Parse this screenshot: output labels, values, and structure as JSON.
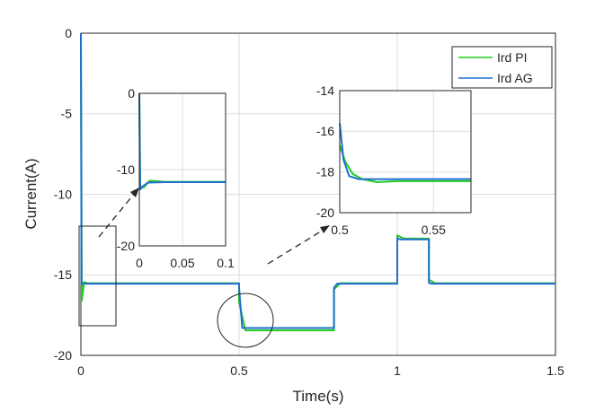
{
  "chart_data": {
    "type": "line",
    "xlabel": "Time(s)",
    "ylabel": "Current(A)",
    "xlim": [
      0,
      1.5
    ],
    "ylim": [
      -20,
      0
    ],
    "xticks": [
      0,
      0.5,
      1,
      1.5
    ],
    "xtick_labels": [
      "0",
      "0.5",
      "1",
      "1.5"
    ],
    "yticks": [
      0,
      -5,
      -10,
      -15,
      -20
    ],
    "ytick_labels": [
      "0",
      "-5",
      "-10",
      "-15",
      "-20"
    ],
    "grid": true,
    "legend_position": "top-right",
    "series": [
      {
        "name": "Ird PI",
        "color": "#22cc22",
        "points": [
          [
            0,
            0
          ],
          [
            0.003,
            -16.6
          ],
          [
            0.01,
            -15.45
          ],
          [
            0.02,
            -15.52
          ],
          [
            0.5,
            -15.52
          ],
          [
            0.5,
            -16.7
          ],
          [
            0.52,
            -18.45
          ],
          [
            0.8,
            -18.45
          ],
          [
            0.8,
            -15.9
          ],
          [
            0.82,
            -15.52
          ],
          [
            1.0,
            -15.52
          ],
          [
            1.0,
            -12.55
          ],
          [
            1.02,
            -12.75
          ],
          [
            1.1,
            -12.75
          ],
          [
            1.1,
            -15.3
          ],
          [
            1.12,
            -15.52
          ],
          [
            1.5,
            -15.52
          ]
        ]
      },
      {
        "name": "Ird AG",
        "color": "#1f6fd0",
        "points": [
          [
            0,
            0
          ],
          [
            0.002,
            -15.55
          ],
          [
            0.5,
            -15.55
          ],
          [
            0.5,
            -15.8
          ],
          [
            0.51,
            -18.3
          ],
          [
            0.8,
            -18.3
          ],
          [
            0.8,
            -15.8
          ],
          [
            0.81,
            -15.55
          ],
          [
            1.0,
            -15.55
          ],
          [
            1.0,
            -12.75
          ],
          [
            1.01,
            -12.8
          ],
          [
            1.1,
            -12.8
          ],
          [
            1.1,
            -15.5
          ],
          [
            1.11,
            -15.55
          ],
          [
            1.5,
            -15.55
          ]
        ]
      }
    ],
    "insets": [
      {
        "xlim": [
          0,
          0.1
        ],
        "ylim": [
          -20,
          0
        ],
        "xticks": [
          0,
          0.05,
          0.1
        ],
        "xtick_labels": [
          "0",
          "0.05",
          "0.1"
        ],
        "yticks": [
          0,
          -10,
          -20
        ],
        "ytick_labels": [
          "0",
          "-10",
          "-20"
        ],
        "series": [
          {
            "name": "Ird PI",
            "points": [
              [
                0,
                0
              ],
              [
                0.001,
                -12.2
              ],
              [
                0.005,
                -12.35
              ],
              [
                0.012,
                -11.45
              ],
              [
                0.03,
                -11.6
              ],
              [
                0.1,
                -11.6
              ]
            ]
          },
          {
            "name": "Ird AG",
            "points": [
              [
                0,
                0
              ],
              [
                0.001,
                -12.6
              ],
              [
                0.004,
                -12.2
              ],
              [
                0.01,
                -11.7
              ],
              [
                0.03,
                -11.65
              ],
              [
                0.1,
                -11.65
              ]
            ]
          }
        ]
      },
      {
        "xlim": [
          0.5,
          0.57
        ],
        "ylim": [
          -20,
          -14
        ],
        "xticks": [
          0.5,
          0.55
        ],
        "xtick_labels": [
          "0.5",
          "0.55"
        ],
        "yticks": [
          -14,
          -16,
          -18,
          -20
        ],
        "ytick_labels": [
          "-14",
          "-16",
          "-18",
          "-20"
        ],
        "series": [
          {
            "name": "Ird PI",
            "points": [
              [
                0.5,
                -16.7
              ],
              [
                0.503,
                -17.5
              ],
              [
                0.507,
                -18.1
              ],
              [
                0.512,
                -18.35
              ],
              [
                0.52,
                -18.5
              ],
              [
                0.53,
                -18.45
              ],
              [
                0.57,
                -18.45
              ]
            ]
          },
          {
            "name": "Ird AG",
            "points": [
              [
                0.5,
                -15.6
              ],
              [
                0.502,
                -17.4
              ],
              [
                0.505,
                -18.2
              ],
              [
                0.51,
                -18.35
              ],
              [
                0.52,
                -18.35
              ],
              [
                0.57,
                -18.35
              ]
            ]
          }
        ]
      }
    ]
  }
}
